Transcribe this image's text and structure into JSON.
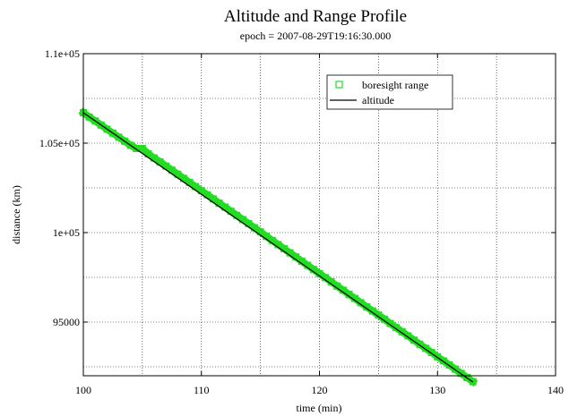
{
  "chart_data": {
    "type": "line",
    "title": "Altitude and Range Profile",
    "subtitle": "epoch = 2007-08-29T19:16:30.000",
    "xlabel": "time (min)",
    "ylabel": "distance (km)",
    "xlim": [
      100,
      140
    ],
    "ylim": [
      92000,
      110000
    ],
    "x_ticks": [
      {
        "value": 100,
        "label": "100"
      },
      {
        "value": 110,
        "label": "110"
      },
      {
        "value": 120,
        "label": "120"
      },
      {
        "value": 130,
        "label": "130"
      },
      {
        "value": 140,
        "label": "140"
      }
    ],
    "y_ticks": [
      {
        "value": 95000,
        "label": "95000"
      },
      {
        "value": 100000,
        "label": "1e+05"
      },
      {
        "value": 105000,
        "label": "1.05e+05"
      },
      {
        "value": 110000,
        "label": "1.1e+05"
      }
    ],
    "grid": true,
    "legend_position": "top-right",
    "series": [
      {
        "name": "boresight range",
        "style": "markers",
        "marker": "square",
        "color": "#22dd22",
        "x": [
          100,
          100.5,
          101,
          101.5,
          102,
          102.5,
          103,
          103.5,
          104,
          104.5,
          105,
          105.5,
          106,
          106.5,
          107,
          107.5,
          108,
          108.5,
          109,
          109.5,
          110,
          110.5,
          111,
          111.5,
          112,
          112.5,
          113,
          113.5,
          114,
          114.5,
          115,
          115.5,
          116,
          116.5,
          117,
          117.5,
          118,
          118.5,
          119,
          119.5,
          120,
          120.5,
          121,
          121.5,
          122,
          122.5,
          123,
          123.5,
          124,
          124.5,
          125,
          125.5,
          126,
          126.5,
          127,
          127.5,
          128,
          128.5,
          129,
          129.5,
          130,
          130.5,
          131,
          131.5,
          132,
          132.5,
          133
        ],
        "y": [
          106700,
          106460,
          106240,
          106010,
          105780,
          105560,
          105330,
          105110,
          104880,
          104700,
          104700,
          104400,
          104170,
          103950,
          103720,
          103490,
          103260,
          103030,
          102800,
          102570,
          102340,
          102110,
          101880,
          101650,
          101420,
          101190,
          100960,
          100730,
          100500,
          100270,
          100040,
          99790,
          99560,
          99330,
          99100,
          98870,
          98640,
          98400,
          98170,
          97940,
          97710,
          97480,
          97250,
          97010,
          96780,
          96550,
          96320,
          96080,
          95850,
          95620,
          95390,
          95160,
          94920,
          94690,
          94460,
          94230,
          93990,
          93760,
          93530,
          93300,
          93060,
          92830,
          92600,
          92370,
          92130,
          91900,
          91670
        ]
      },
      {
        "name": "altitude",
        "style": "line",
        "color": "#000000",
        "x": [
          100,
          133
        ],
        "y": [
          106700,
          91650
        ]
      }
    ]
  }
}
